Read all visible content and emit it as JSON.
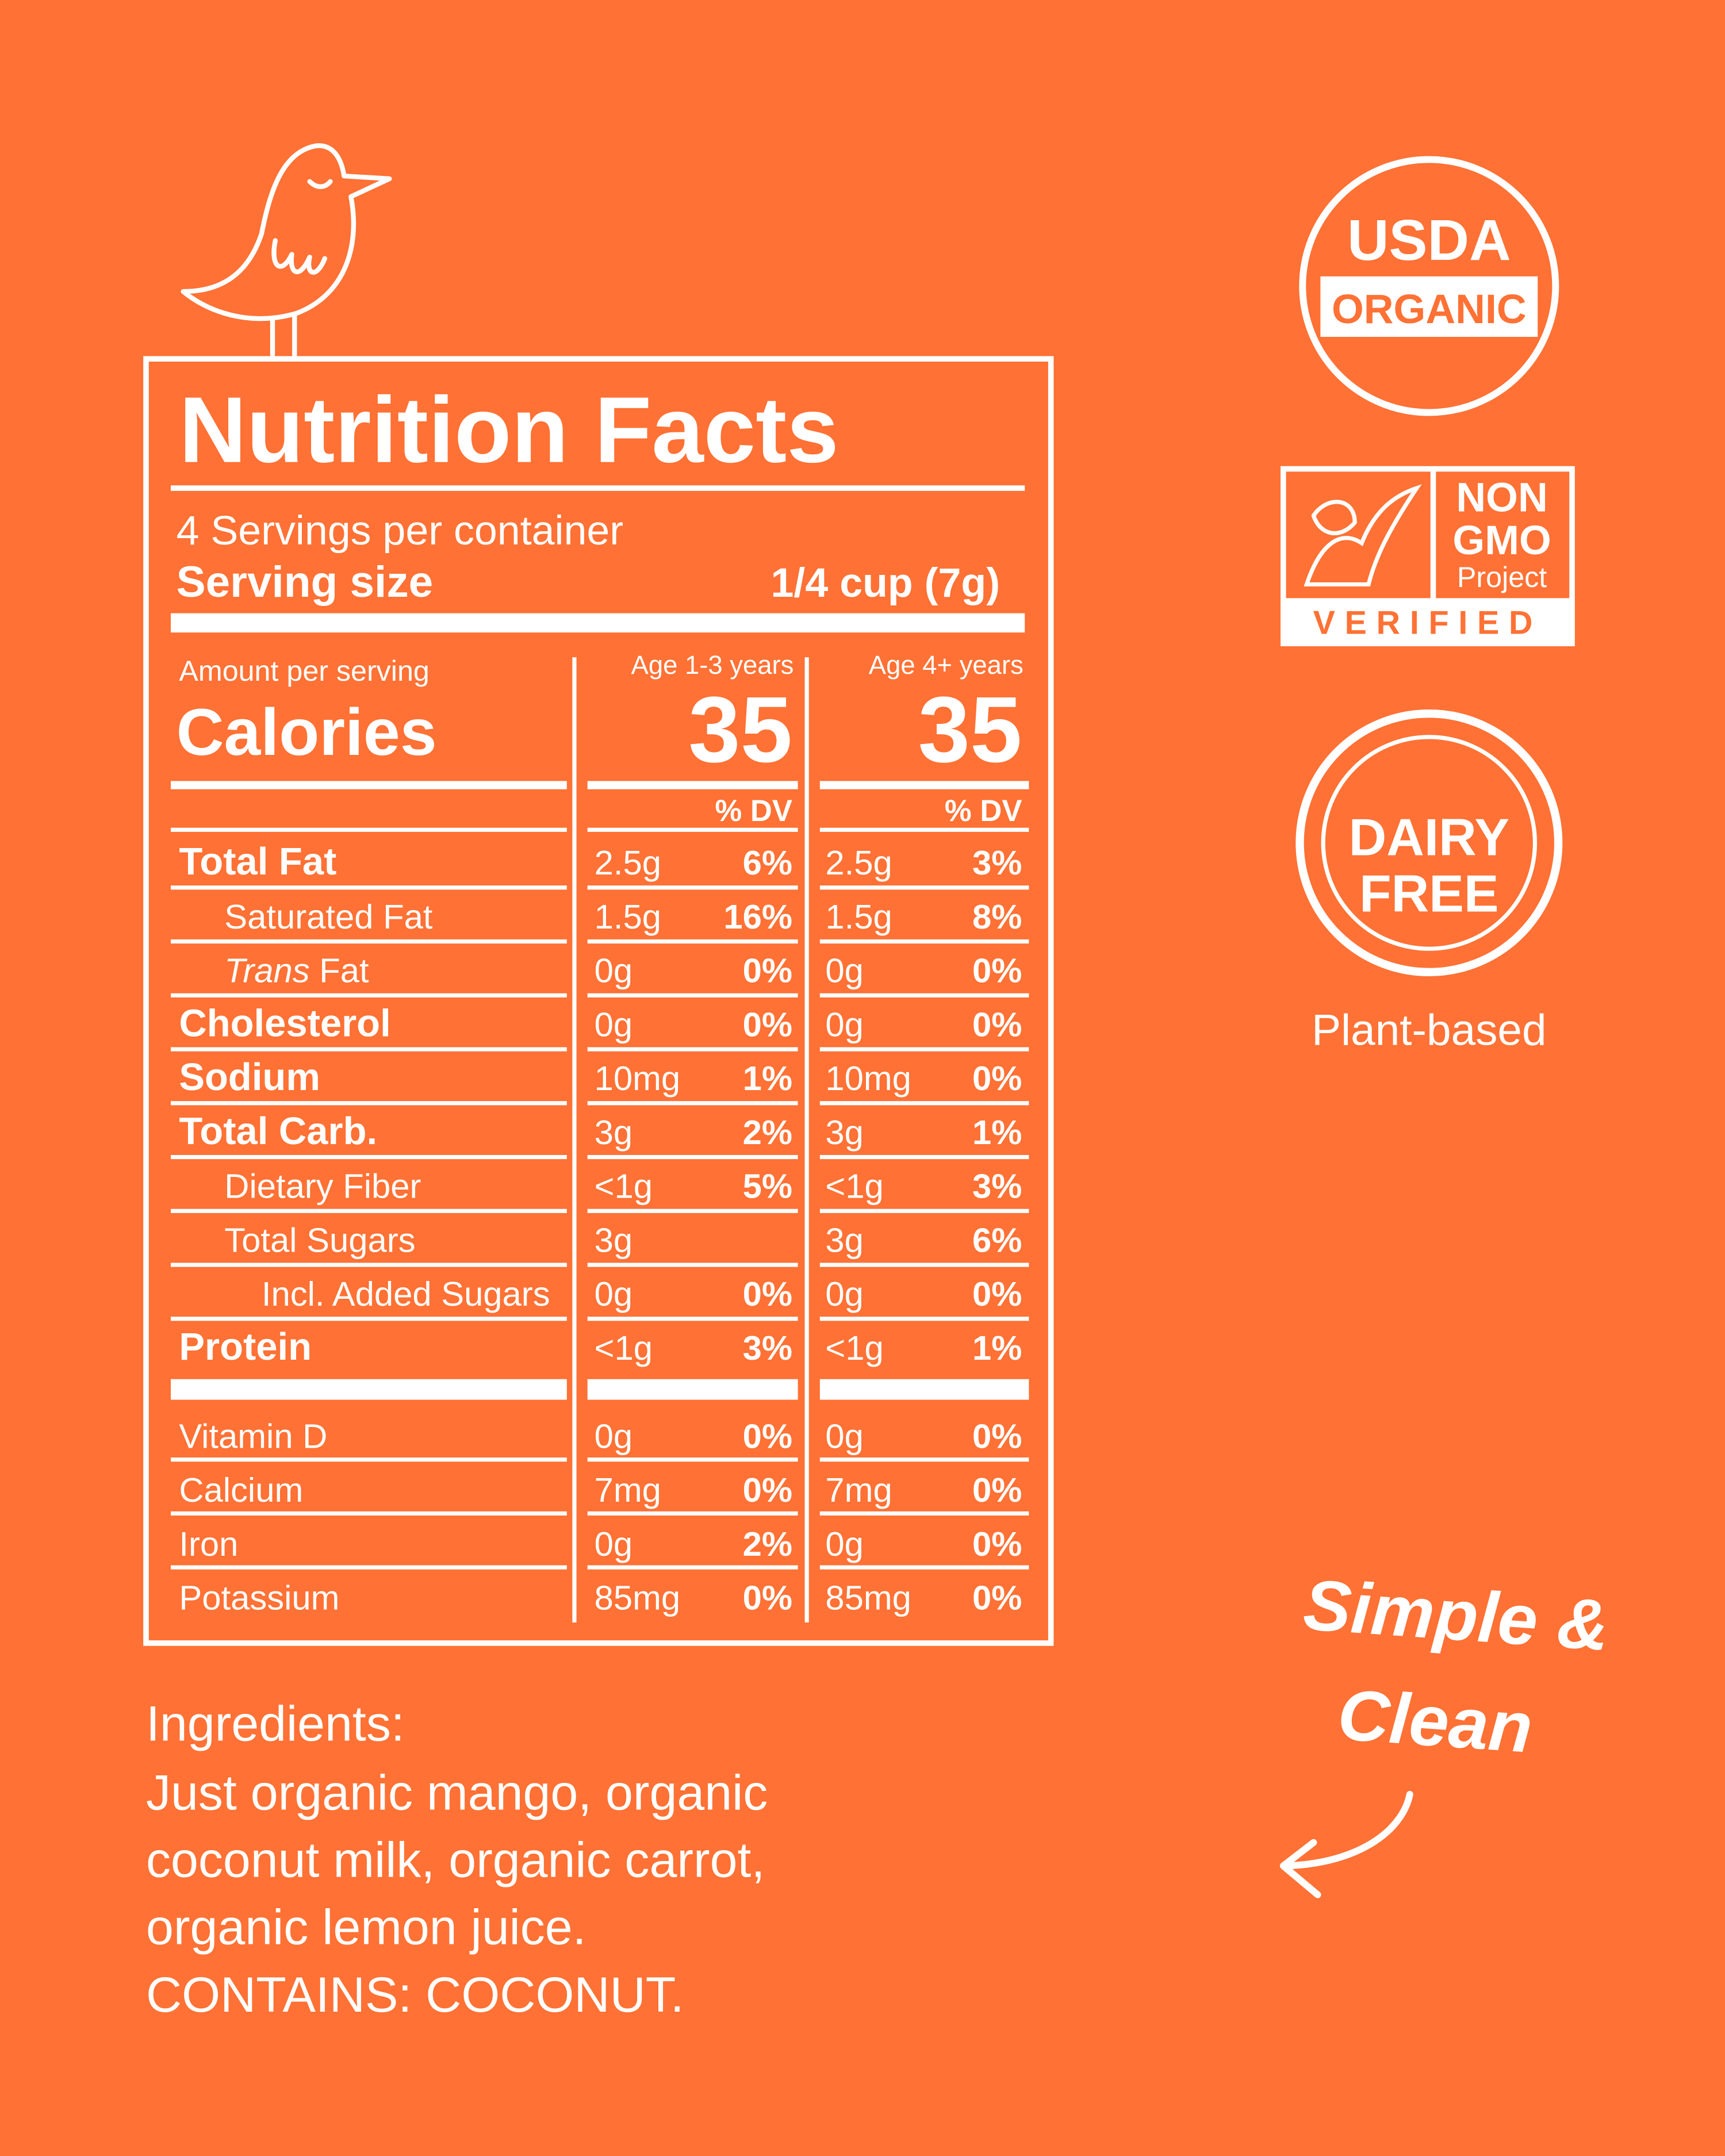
{
  "label": {
    "title": "Nutrition Facts",
    "servings": "4 Servings per container",
    "serving_size": {
      "label": "Serving size",
      "value": "1/4 cup (7g)"
    },
    "amount_per_serving": "Amount per serving",
    "calories": {
      "label": "Calories",
      "columns": [
        {
          "header": "Age 1-3 years",
          "value": "35",
          "dv_header": "% DV"
        },
        {
          "header": "Age 4+ years",
          "value": "35",
          "dv_header": "% DV"
        }
      ]
    },
    "rows": [
      {
        "name": "Total Fat",
        "bold": true,
        "level": 0,
        "cols": [
          {
            "amount": "2.5g",
            "dv": "6%"
          },
          {
            "amount": "2.5g",
            "dv": "3%"
          }
        ]
      },
      {
        "name": "Saturated Fat",
        "bold": false,
        "level": 1,
        "cols": [
          {
            "amount": "1.5g",
            "dv": "16%"
          },
          {
            "amount": "1.5g",
            "dv": "8%"
          }
        ]
      },
      {
        "name_italic": "Trans",
        "name": "Fat",
        "bold": false,
        "level": 1,
        "cols": [
          {
            "amount": "0g",
            "dv": "0%"
          },
          {
            "amount": "0g",
            "dv": "0%"
          }
        ]
      },
      {
        "name": "Cholesterol",
        "bold": true,
        "level": 0,
        "cols": [
          {
            "amount": "0g",
            "dv": "0%"
          },
          {
            "amount": "0g",
            "dv": "0%"
          }
        ]
      },
      {
        "name": "Sodium",
        "bold": true,
        "level": 0,
        "cols": [
          {
            "amount": "10mg",
            "dv": "1%"
          },
          {
            "amount": "10mg",
            "dv": "0%"
          }
        ]
      },
      {
        "name": "Total Carb.",
        "bold": true,
        "level": 0,
        "cols": [
          {
            "amount": "3g",
            "dv": "2%"
          },
          {
            "amount": "3g",
            "dv": "1%"
          }
        ]
      },
      {
        "name": "Dietary Fiber",
        "bold": false,
        "level": 1,
        "cols": [
          {
            "amount": "<1g",
            "dv": "5%"
          },
          {
            "amount": "<1g",
            "dv": "3%"
          }
        ]
      },
      {
        "name": "Total Sugars",
        "bold": false,
        "level": 1,
        "cols": [
          {
            "amount": "3g"
          },
          {
            "amount": "3g",
            "dv": "6%"
          }
        ]
      },
      {
        "name": "Incl. Added Sugars",
        "bold": false,
        "level": 2,
        "cols": [
          {
            "amount": "0g",
            "dv": "0%"
          },
          {
            "amount": "0g",
            "dv": "0%"
          }
        ]
      },
      {
        "name": "Protein",
        "bold": true,
        "level": 0,
        "cols": [
          {
            "amount": "<1g",
            "dv": "3%"
          },
          {
            "amount": "<1g",
            "dv": "1%"
          }
        ]
      }
    ],
    "vitamins": [
      {
        "name": "Vitamin D",
        "cols": [
          {
            "amount": "0g",
            "dv": "0%"
          },
          {
            "amount": "0g",
            "dv": "0%"
          }
        ]
      },
      {
        "name": "Calcium",
        "cols": [
          {
            "amount": "7mg",
            "dv": "0%"
          },
          {
            "amount": "7mg",
            "dv": "0%"
          }
        ]
      },
      {
        "name": "Iron",
        "cols": [
          {
            "amount": "0g",
            "dv": "2%"
          },
          {
            "amount": "0g",
            "dv": "0%"
          }
        ]
      },
      {
        "name": "Potassium",
        "cols": [
          {
            "amount": "85mg",
            "dv": "0%"
          },
          {
            "amount": "85mg",
            "dv": "0%"
          }
        ]
      }
    ]
  },
  "ingredients": {
    "heading": "Ingredients:",
    "lines": [
      "Just organic mango, organic",
      "coconut milk, organic carrot,",
      "organic lemon juice.",
      "CONTAINS: COCONUT."
    ]
  },
  "badges": {
    "usda": {
      "top": "USDA",
      "band": "ORGANIC"
    },
    "non_gmo": {
      "line1": "NON",
      "line2": "GMO",
      "line3": "Project",
      "bottom": "VERIFIED"
    },
    "dairy_free": {
      "line1": "DAIRY",
      "line2": "FREE",
      "caption": "Plant-based"
    }
  },
  "tagline": [
    "Simple &",
    "Clean"
  ]
}
